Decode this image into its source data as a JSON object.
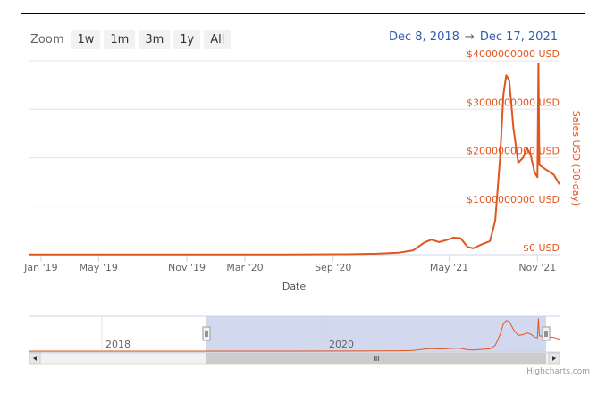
{
  "toolbar": {
    "zoom_label": "Zoom",
    "buttons": [
      "1w",
      "1m",
      "3m",
      "1y",
      "All"
    ]
  },
  "range": {
    "from": "Dec 8, 2018",
    "arrow": "→",
    "to": "Dec 17, 2021"
  },
  "credit": "Highcharts.com",
  "navigator": {
    "year_labels": [
      "2018",
      "2020"
    ],
    "scroll_grip": "III"
  },
  "colors": {
    "series": "#e0561f",
    "navigator_mask": "#c7d0ea",
    "link": "#335cad"
  },
  "chart_data": {
    "type": "line",
    "xlabel": "Date",
    "ylabel": "Sales USD (30-day)",
    "x_ticks": [
      "Jan '19",
      "May '19",
      "Nov '19",
      "Mar '20",
      "Sep '20",
      "May '21",
      "Nov '21"
    ],
    "y_ticks": [
      "$0 USD",
      "$1000000000 USD",
      "$2000000000 USD",
      "$3000000000 USD",
      "$4000000000 USD"
    ],
    "ylim": [
      0,
      4000000000
    ],
    "grid": true,
    "series": [
      {
        "points": [
          [
            "2018-12-08",
            3000000
          ],
          [
            "2019-06-01",
            3000000
          ],
          [
            "2019-12-01",
            4000000
          ],
          [
            "2020-06-01",
            5000000
          ],
          [
            "2020-10-01",
            10000000
          ],
          [
            "2020-12-01",
            20000000
          ],
          [
            "2021-01-15",
            40000000
          ],
          [
            "2021-02-15",
            90000000
          ],
          [
            "2021-03-10",
            250000000
          ],
          [
            "2021-03-25",
            310000000
          ],
          [
            "2021-04-10",
            260000000
          ],
          [
            "2021-04-25",
            300000000
          ],
          [
            "2021-05-10",
            350000000
          ],
          [
            "2021-05-25",
            340000000
          ],
          [
            "2021-06-08",
            160000000
          ],
          [
            "2021-06-20",
            130000000
          ],
          [
            "2021-07-05",
            200000000
          ],
          [
            "2021-07-25",
            280000000
          ],
          [
            "2021-08-05",
            700000000
          ],
          [
            "2021-08-15",
            2000000000
          ],
          [
            "2021-08-22",
            3300000000
          ],
          [
            "2021-08-28",
            3700000000
          ],
          [
            "2021-09-03",
            3600000000
          ],
          [
            "2021-09-12",
            2600000000
          ],
          [
            "2021-09-22",
            1900000000
          ],
          [
            "2021-10-02",
            2000000000
          ],
          [
            "2021-10-10",
            2200000000
          ],
          [
            "2021-10-18",
            2050000000
          ],
          [
            "2021-10-26",
            1700000000
          ],
          [
            "2021-11-01",
            1600000000
          ],
          [
            "2021-11-03",
            3950000000
          ],
          [
            "2021-11-05",
            1850000000
          ],
          [
            "2021-11-20",
            1750000000
          ],
          [
            "2021-12-05",
            1650000000
          ],
          [
            "2021-12-17",
            1450000000
          ]
        ]
      }
    ]
  }
}
